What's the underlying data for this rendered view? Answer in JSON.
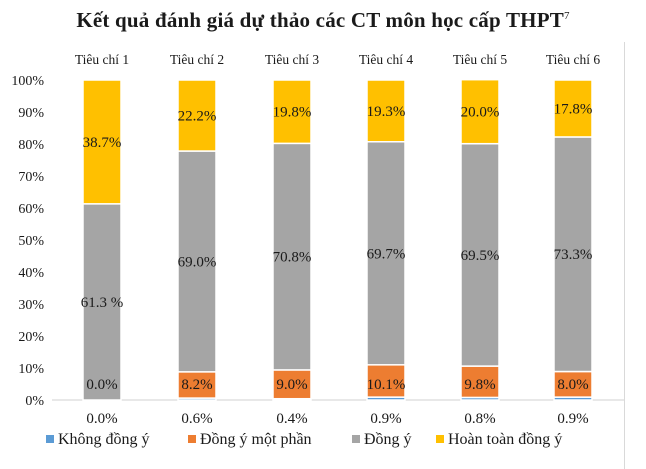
{
  "chart_data": {
    "type": "bar",
    "stacked": true,
    "title": "Kết quả đánh giá dự thảo các CT môn học cấp THPT",
    "title_superscript": "7",
    "categories": [
      "Tiêu chí 1",
      "Tiêu chí 2",
      "Tiêu chí 3",
      "Tiêu chí 4",
      "Tiêu chí 5",
      "Tiêu chí 6"
    ],
    "category_position": "top",
    "series": [
      {
        "name": "Không đồng ý",
        "color": "#5b9bd5",
        "values": [
          0.0,
          0.6,
          0.4,
          0.9,
          0.8,
          0.9
        ],
        "labels": [
          "0.0%",
          "0.6%",
          "0.4%",
          "0.9%",
          "0.8%",
          "0.9%"
        ],
        "label_position": "below-axis"
      },
      {
        "name": "Đồng ý một phần",
        "color": "#ed7d31",
        "values": [
          0.0,
          8.2,
          9.0,
          10.1,
          9.8,
          8.0
        ],
        "labels": [
          "0.0%",
          "8.2%",
          "9.0%",
          "10.1%",
          "9.8%",
          "8.0%"
        ],
        "label_position": "inside"
      },
      {
        "name": "Đồng ý",
        "color": "#a5a5a5",
        "values": [
          61.3,
          69.0,
          70.8,
          69.7,
          69.5,
          73.3
        ],
        "labels": [
          "61.3 %",
          "69.0%",
          "70.8%",
          "69.7%",
          "69.5%",
          "73.3%"
        ],
        "label_position": "inside"
      },
      {
        "name": "Hoàn toàn đồng ý",
        "color": "#ffc000",
        "values": [
          38.7,
          22.2,
          19.8,
          19.3,
          20.0,
          17.8
        ],
        "labels": [
          "38.7%",
          "22.2%",
          "19.8%",
          "19.3%",
          "20.0%",
          "17.8%"
        ],
        "label_position": "inside"
      }
    ],
    "ylim": [
      0,
      100
    ],
    "yticks": [
      "0%",
      "10%",
      "20%",
      "30%",
      "40%",
      "50%",
      "60%",
      "70%",
      "80%",
      "90%",
      "100%"
    ],
    "grid": true,
    "legend_position": "bottom"
  }
}
